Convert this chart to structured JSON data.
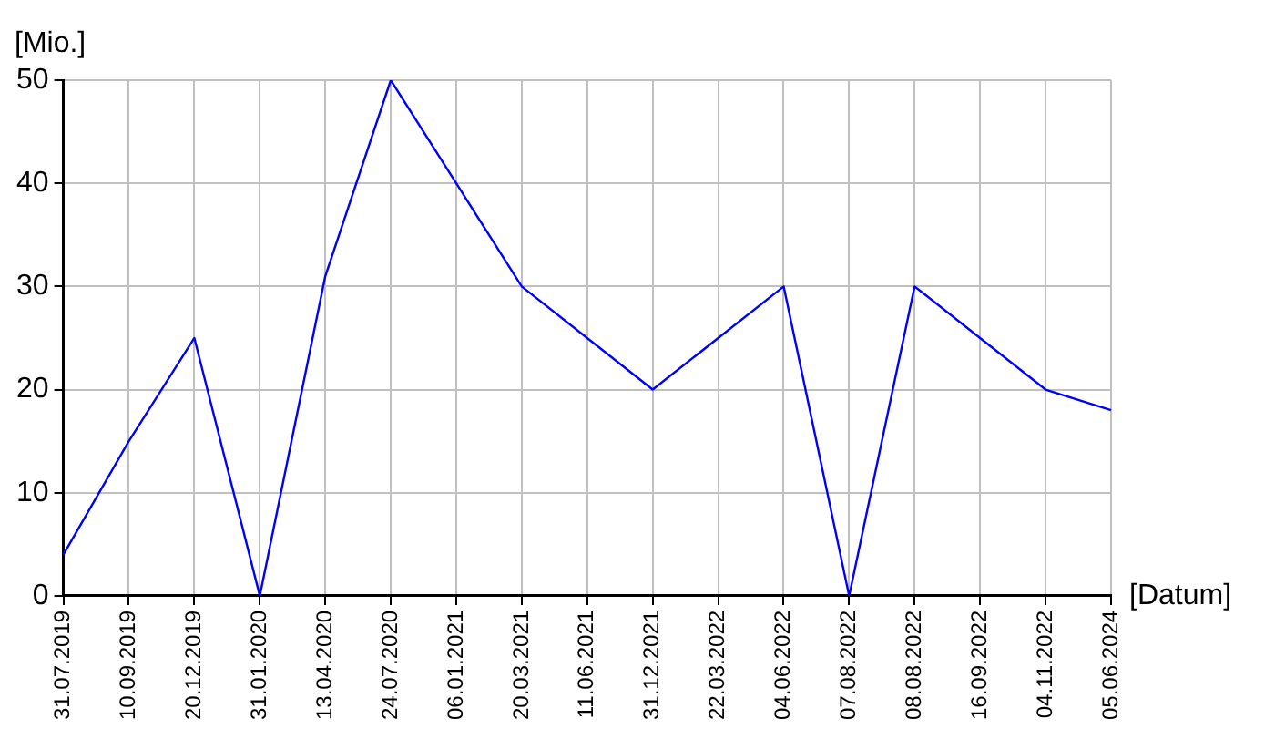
{
  "chart_data": {
    "type": "line",
    "ylabel": "[Mio.]",
    "xlabel": "[Datum]",
    "categories": [
      "31.07.2019",
      "10.09.2019",
      "20.12.2019",
      "31.01.2020",
      "13.04.2020",
      "24.07.2020",
      "06.01.2021",
      "20.03.2021",
      "11.06.2021",
      "31.12.2021",
      "22.03.2022",
      "04.06.2022",
      "07.08.2022",
      "08.08.2022",
      "16.09.2022",
      "04.11.2022",
      "05.06.2024"
    ],
    "series": [
      {
        "color": "#0000ff",
        "values": [
          4,
          15,
          25,
          0,
          31,
          50,
          40,
          30,
          25,
          20,
          25,
          30,
          0,
          30,
          25,
          20,
          18
        ]
      }
    ],
    "ylim": [
      0,
      50
    ],
    "yticks": [
      0,
      10,
      20,
      30,
      40,
      50
    ],
    "grid": true,
    "legend": false,
    "marker": "none",
    "line_style": "solid"
  }
}
